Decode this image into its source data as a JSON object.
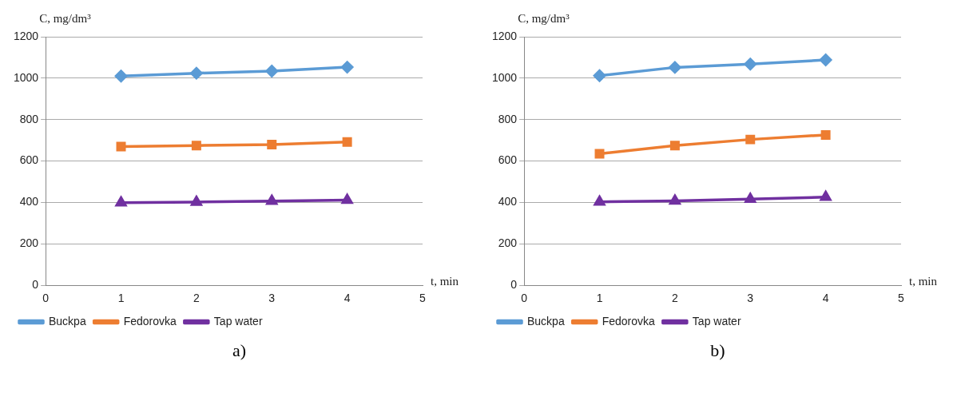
{
  "chart_data": [
    {
      "type": "line",
      "title": "a)",
      "xlabel": "t, min",
      "ylabel": "C, mg/dm³",
      "x": [
        1,
        2,
        3,
        4
      ],
      "xlim": [
        0,
        5
      ],
      "xticks": [
        0,
        1,
        2,
        3,
        4,
        5
      ],
      "ylim": [
        0,
        1200
      ],
      "yticks": [
        0,
        200,
        400,
        600,
        800,
        1000,
        1200
      ],
      "grid": "y",
      "legend": "bottom",
      "series": [
        {
          "name": "Buckpa",
          "color": "#5b9bd5",
          "marker": "diamond",
          "values": [
            1010,
            1024,
            1034,
            1053
          ]
        },
        {
          "name": "Fedorovka",
          "color": "#ed7d31",
          "marker": "square",
          "values": [
            670,
            675,
            679,
            692
          ]
        },
        {
          "name": "Tap water",
          "color": "#7030a0",
          "marker": "triangle",
          "values": [
            399,
            402,
            407,
            411
          ]
        }
      ]
    },
    {
      "type": "line",
      "title": "b)",
      "xlabel": "t, min",
      "ylabel": "C, mg/dm³",
      "x": [
        1,
        2,
        3,
        4
      ],
      "xlim": [
        0,
        5
      ],
      "xticks": [
        0,
        1,
        2,
        3,
        4,
        5
      ],
      "ylim": [
        0,
        1200
      ],
      "yticks": [
        0,
        200,
        400,
        600,
        800,
        1000,
        1200
      ],
      "grid": "y",
      "legend": "bottom",
      "series": [
        {
          "name": "Buckpa",
          "color": "#5b9bd5",
          "marker": "diamond",
          "values": [
            1012,
            1052,
            1068,
            1088
          ]
        },
        {
          "name": "Fedorovka",
          "color": "#ed7d31",
          "marker": "square",
          "values": [
            635,
            675,
            704,
            726
          ]
        },
        {
          "name": "Tap water",
          "color": "#7030a0",
          "marker": "triangle",
          "values": [
            403,
            408,
            416,
            426
          ]
        }
      ]
    }
  ]
}
